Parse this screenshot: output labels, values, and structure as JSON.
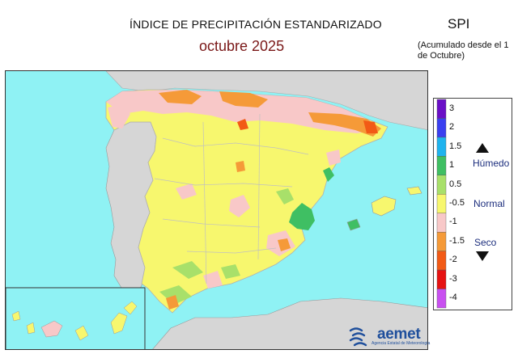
{
  "header": {
    "title": "ÍNDICE DE PRECIPITACIÓN ESTANDARIZADO",
    "subtitle": "octubre  2025",
    "index_label": "SPI",
    "note": "(Acumulado desde el 1 de Octubre)"
  },
  "legend": {
    "classes": [
      {
        "label": "3",
        "color": "#6a0fc7"
      },
      {
        "label": "2",
        "color": "#3a3ff0"
      },
      {
        "label": "1.5",
        "color": "#1fb3ee"
      },
      {
        "label": "1",
        "color": "#3fbf63"
      },
      {
        "label": "0.5",
        "color": "#a8e06a"
      },
      {
        "label": "-0.5",
        "color": "#f7f76e"
      },
      {
        "label": "-1",
        "color": "#f8c8c8"
      },
      {
        "label": "-1.5",
        "color": "#f59a38"
      },
      {
        "label": "-2",
        "color": "#f25a16"
      },
      {
        "label": "-3",
        "color": "#e61212"
      },
      {
        "label": "-4",
        "color": "#c850f0"
      }
    ],
    "wet_label": "Húmedo",
    "normal_label": "Normal",
    "dry_label": "Seco"
  },
  "logo": {
    "name": "aemet",
    "tagline": "Agencia Estatal de Meteorología"
  },
  "colors": {
    "sea": "#8ff2f4",
    "other_land": "#d6d6d6",
    "boundary": "#c0c0c0"
  }
}
